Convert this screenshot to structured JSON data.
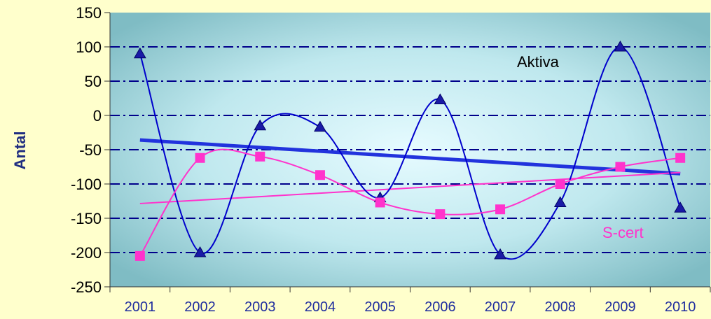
{
  "chart_data": {
    "type": "line",
    "categories": [
      "2001",
      "2002",
      "2003",
      "2004",
      "2005",
      "2006",
      "2007",
      "2008",
      "2009",
      "2010"
    ],
    "ylabel": "Antal",
    "xlabel": "",
    "ylim": [
      -250,
      150
    ],
    "yticks": [
      150,
      100,
      50,
      0,
      -50,
      -100,
      -150,
      -200,
      -250
    ],
    "grid": true,
    "trendlines": true,
    "series": [
      {
        "name": "Aktiva",
        "marker": "triangle",
        "color": "#0000cc",
        "trend_color": "#2233dd",
        "values": [
          90,
          -200,
          -15,
          -17,
          -120,
          23,
          -203,
          -127,
          100,
          -135
        ]
      },
      {
        "name": "S-cert",
        "marker": "square",
        "color": "#ff33cc",
        "trend_color": "#ff33cc",
        "values": [
          -205,
          -62,
          -60,
          -87,
          -127,
          -144,
          -137,
          -100,
          -75,
          -62
        ]
      }
    ]
  }
}
